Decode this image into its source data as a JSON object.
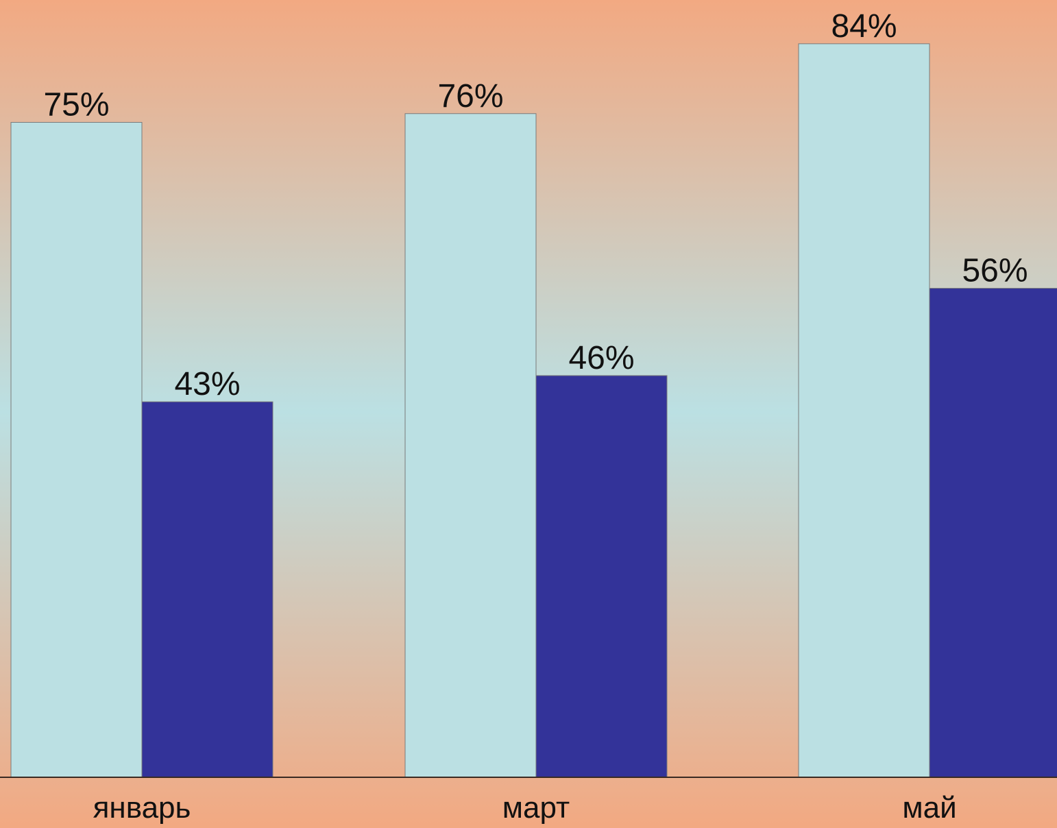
{
  "chart_data": {
    "type": "bar",
    "title": "",
    "xlabel": "",
    "ylabel": "",
    "categories": [
      "январь",
      "март",
      "май"
    ],
    "series": [
      {
        "values": [
          75,
          76,
          84
        ],
        "labels": [
          "75%",
          "76%",
          "84%"
        ],
        "color": "#bbe0e3"
      },
      {
        "values": [
          43,
          46,
          56
        ],
        "labels": [
          "43%",
          "46%",
          "56%"
        ],
        "color": "#333399"
      }
    ],
    "ylim": [
      0,
      100
    ],
    "value_suffix": "%",
    "grid": false,
    "legend": "none"
  },
  "colors": {
    "background_edge": "#f2a982",
    "background_center": "#bbe0e3",
    "bar_outline": "#7a7a7a",
    "axis_line": "#3a2a22",
    "text": "#111111"
  }
}
